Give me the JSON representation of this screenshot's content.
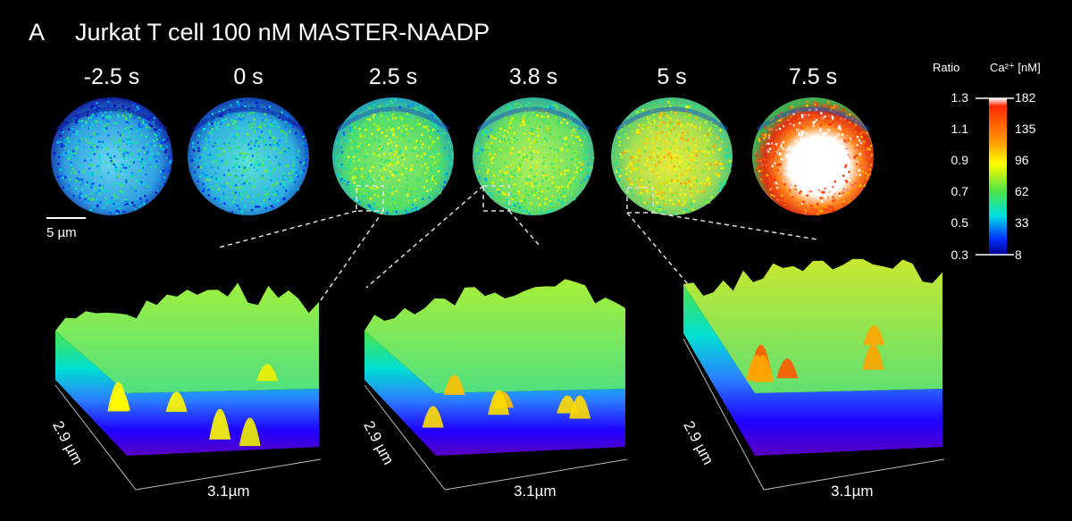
{
  "panel": {
    "letter": "A",
    "title": "Jurkat T cell 100 nM MASTER-NAADP"
  },
  "timepoints": [
    {
      "label": "-2.5 s",
      "level": 0.3
    },
    {
      "label": "0 s",
      "level": 0.33
    },
    {
      "label": "2.5 s",
      "level": 0.46
    },
    {
      "label": "3.8 s",
      "level": 0.5
    },
    {
      "label": "5 s",
      "level": 0.58
    },
    {
      "label": "7.5 s",
      "level": 0.92
    }
  ],
  "scale_bar": {
    "label": "5 µm"
  },
  "colorbar": {
    "ratio_header": "Ratio",
    "ca_header": "Ca²⁺ [nM]",
    "ratio_ticks": [
      "1.3",
      "1.1",
      "0.9",
      "0.7",
      "0.5",
      "0.3"
    ],
    "ca_ticks": [
      "182",
      "135",
      "96",
      "62",
      "33",
      "8"
    ],
    "colors": [
      "#ffffff",
      "#ff2a00",
      "#ff9a00",
      "#ffff00",
      "#49e34a",
      "#00e0e0",
      "#0030ff",
      "#000090"
    ]
  },
  "surfaces": [
    {
      "x_label": "3.1µm",
      "y_label": "2.9 µm",
      "level": 0.48,
      "peak_color": "#f0f000"
    },
    {
      "x_label": "3.1µm",
      "y_label": "2.9 µm",
      "level": 0.52,
      "peak_color": "#ffc000"
    },
    {
      "x_label": "3.1µm",
      "y_label": "2.9 µm",
      "level": 0.6,
      "peak_color": "#ff5a00"
    }
  ]
}
